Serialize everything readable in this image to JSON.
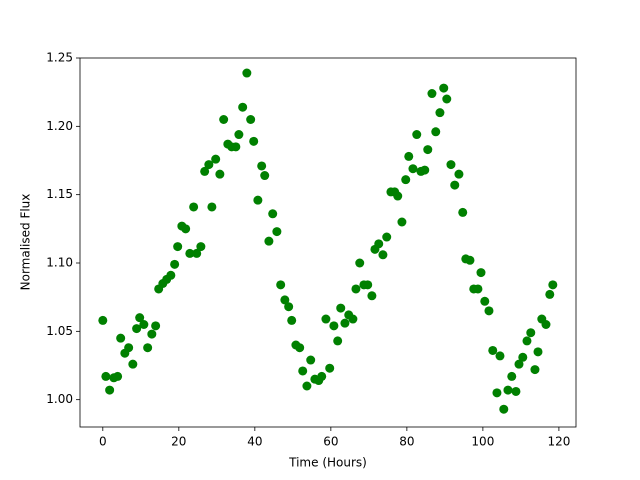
{
  "chart_data": {
    "type": "scatter",
    "xlabel": "Time (Hours)",
    "ylabel": "Normalised Flux",
    "color": "#008000",
    "xlim": [
      -6,
      124.5
    ],
    "ylim": [
      0.98,
      1.25
    ],
    "xticks": [
      0,
      20,
      40,
      60,
      80,
      100,
      120
    ],
    "yticks": [
      {
        "value": 1,
        "label": "1.00"
      },
      1.05,
      {
        "value": 1.1,
        "label": "1.10"
      },
      1.15,
      {
        "value": 1.2,
        "label": "1.20"
      },
      1.25
    ],
    "x": [
      0,
      0.8,
      1.8,
      2.9,
      3.9,
      4.7,
      5.8,
      6.8,
      7.9,
      8.9,
      9.7,
      10.8,
      11.8,
      12.9,
      13.9,
      14.7,
      15.8,
      16.8,
      17.9,
      18.9,
      19.7,
      20.8,
      21.8,
      22.9,
      23.9,
      24.7,
      25.8,
      26.8,
      27.9,
      28.7,
      29.7,
      30.8,
      31.8,
      32.9,
      33.9,
      35,
      35.8,
      36.8,
      37.9,
      38.9,
      39.7,
      40.8,
      41.8,
      42.6,
      43.7,
      44.7,
      45.8,
      46.8,
      47.9,
      48.9,
      49.7,
      50.8,
      51.8,
      52.6,
      53.7,
      54.7,
      55.8,
      56.8,
      57.6,
      58.7,
      59.7,
      60.8,
      61.8,
      62.6,
      63.7,
      64.7,
      65.8,
      66.6,
      67.6,
      68.7,
      69.7,
      70.8,
      71.6,
      72.6,
      73.7,
      74.7,
      75.8,
      76.8,
      77.6,
      78.7,
      79.7,
      80.5,
      81.6,
      82.6,
      83.7,
      84.7,
      85.5,
      86.6,
      87.6,
      88.7,
      89.7,
      90.5,
      91.6,
      92.6,
      93.7,
      94.7,
      95.5,
      96.6,
      97.6,
      98.7,
      99.5,
      100.5,
      101.6,
      102.6,
      103.7,
      104.5,
      105.5,
      106.6,
      107.6,
      108.7,
      109.5,
      110.5,
      111.6,
      112.6,
      113.7,
      114.5,
      115.5,
      116.6,
      117.6,
      118.4
    ],
    "y": [
      1.058,
      1.017,
      1.007,
      1.016,
      1.017,
      1.045,
      1.034,
      1.038,
      1.026,
      1.052,
      1.06,
      1.055,
      1.038,
      1.048,
      1.054,
      1.081,
      1.085,
      1.088,
      1.091,
      1.099,
      1.112,
      1.127,
      1.125,
      1.107,
      1.141,
      1.107,
      1.112,
      1.167,
      1.172,
      1.141,
      1.176,
      1.165,
      1.205,
      1.187,
      1.185,
      1.185,
      1.194,
      1.214,
      1.239,
      1.205,
      1.189,
      1.146,
      1.171,
      1.164,
      1.116,
      1.136,
      1.123,
      1.084,
      1.073,
      1.068,
      1.058,
      1.04,
      1.038,
      1.021,
      1.01,
      1.029,
      1.015,
      1.014,
      1.017,
      1.059,
      1.023,
      1.054,
      1.043,
      1.067,
      1.056,
      1.062,
      1.059,
      1.081,
      1.1,
      1.084,
      1.084,
      1.076,
      1.11,
      1.114,
      1.106,
      1.119,
      1.152,
      1.152,
      1.149,
      1.13,
      1.161,
      1.178,
      1.169,
      1.194,
      1.167,
      1.168,
      1.183,
      1.224,
      1.196,
      1.21,
      1.228,
      1.22,
      1.172,
      1.157,
      1.165,
      1.137,
      1.103,
      1.102,
      1.081,
      1.081,
      1.093,
      1.072,
      1.065,
      1.036,
      1.005,
      1.032,
      0.993,
      1.007,
      1.017,
      1.006,
      1.026,
      1.031,
      1.043,
      1.049,
      1.022,
      1.035,
      1.059,
      1.055,
      1.077,
      1.084
    ]
  }
}
